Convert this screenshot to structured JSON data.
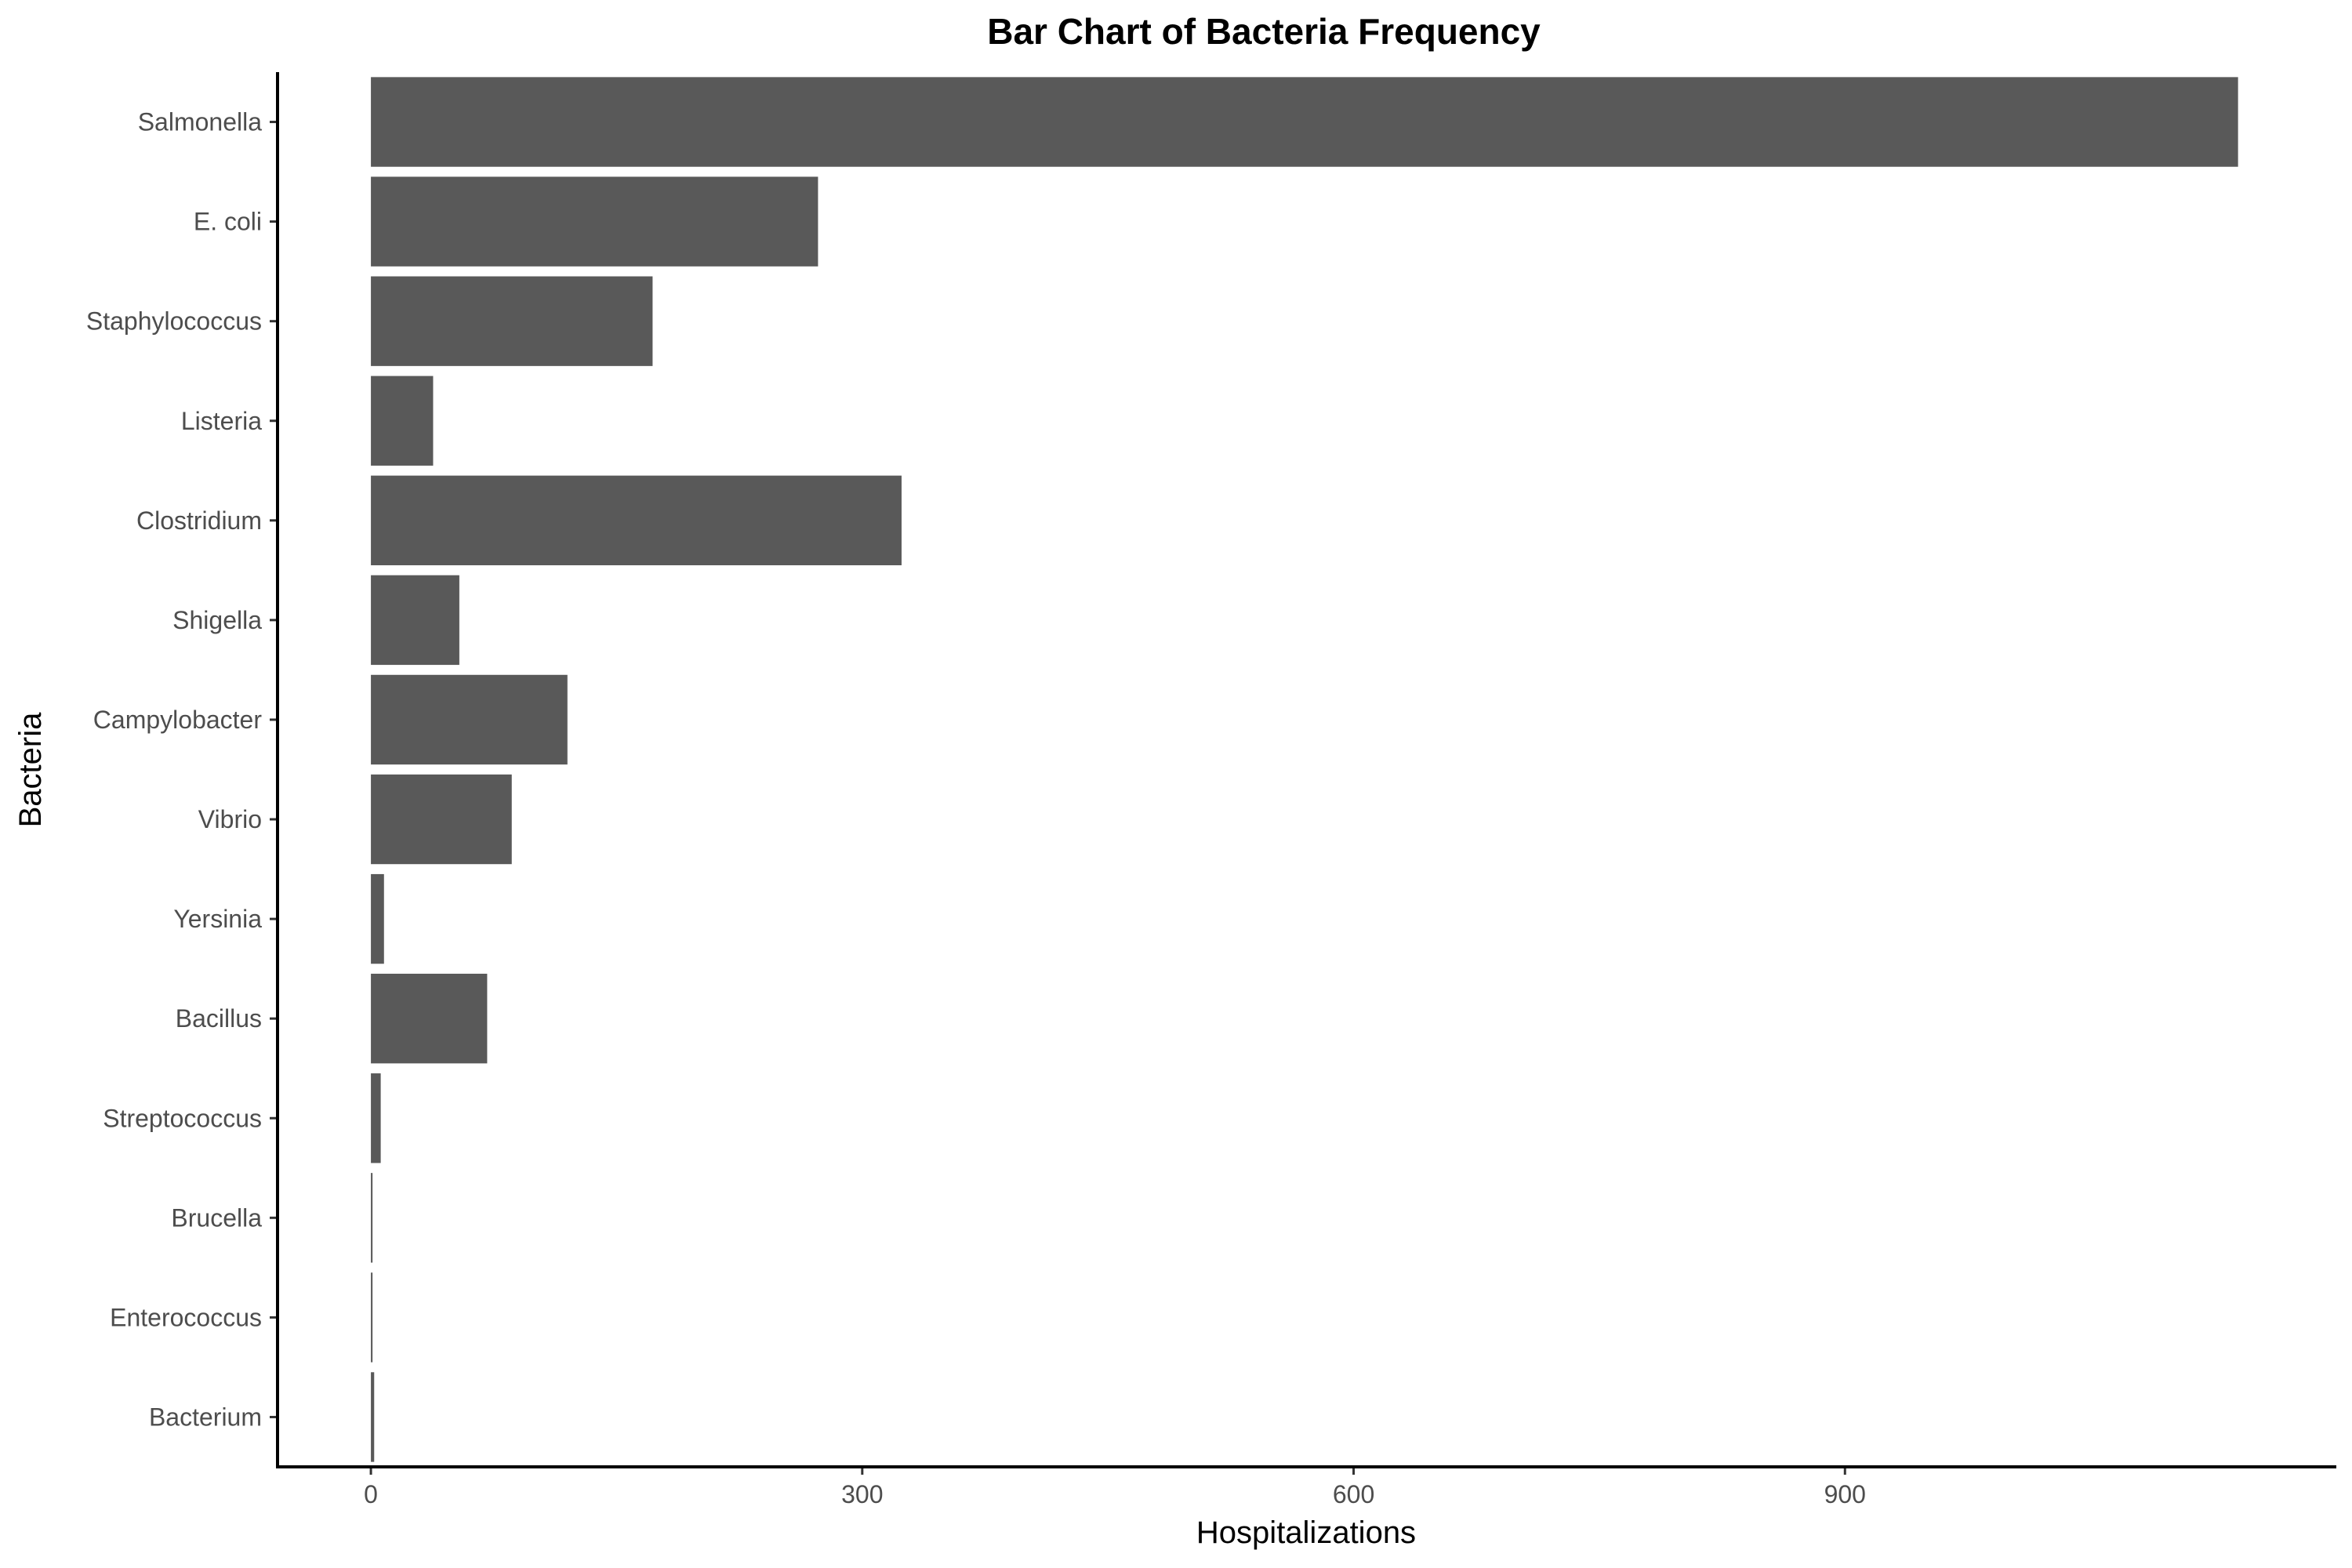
{
  "chart_data": {
    "type": "bar",
    "orientation": "horizontal",
    "title": "Bar Chart of Bacteria Frequency",
    "xlabel": "Hospitalizations",
    "ylabel": "Bacteria",
    "categories": [
      "Salmonella",
      "E. coli",
      "Staphylococcus",
      "Listeria",
      "Clostridium",
      "Shigella",
      "Campylobacter",
      "Vibrio",
      "Yersinia",
      "Bacillus",
      "Streptococcus",
      "Brucella",
      "Enterococcus",
      "Bacterium"
    ],
    "values": [
      1140,
      273,
      172,
      38,
      324,
      54,
      120,
      86,
      8,
      71,
      6,
      1,
      1,
      2
    ],
    "xlim": [
      -57,
      1200
    ],
    "xticks": [
      0,
      300,
      600,
      900
    ],
    "grid": false,
    "legend": "none",
    "bar_color": "#595959"
  }
}
